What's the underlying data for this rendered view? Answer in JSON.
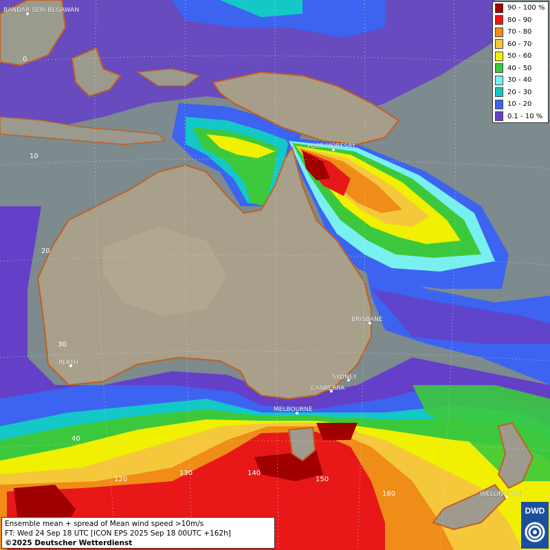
{
  "map": {
    "cities": [
      {
        "id": "bandar",
        "label": "BANDAR SERI BEGAWAN"
      },
      {
        "id": "port-moresby",
        "label": "PORT MORESBY"
      },
      {
        "id": "brisbane",
        "label": "BRISBANE"
      },
      {
        "id": "perth",
        "label": "PERTH"
      },
      {
        "id": "sydney",
        "label": "SYDNEY"
      },
      {
        "id": "canberra",
        "label": "CANBERRA"
      },
      {
        "id": "melbourne",
        "label": "MELBOURNE"
      },
      {
        "id": "wellington",
        "label": "WELLINGTON"
      }
    ],
    "latitude_labels": [
      "0",
      "10",
      "20",
      "30",
      "40"
    ],
    "longitude_labels": [
      "120",
      "130",
      "140",
      "150",
      "160"
    ]
  },
  "legend": {
    "items": [
      {
        "label": "90 - 100 %",
        "color": "#a00000"
      },
      {
        "label": "80 - 90",
        "color": "#e81818"
      },
      {
        "label": "70 - 80",
        "color": "#f08c18"
      },
      {
        "label": "60 - 70",
        "color": "#f5c83c"
      },
      {
        "label": "50 - 60",
        "color": "#f0f000"
      },
      {
        "label": "40 - 50",
        "color": "#3cc83c"
      },
      {
        "label": "30 - 40",
        "color": "#78f0f0"
      },
      {
        "label": "20 - 30",
        "color": "#14c8c8"
      },
      {
        "label": "10 - 20",
        "color": "#3c64f0"
      },
      {
        "label": "0.1 - 10 %",
        "color": "#6440c8"
      }
    ]
  },
  "info": {
    "line1": "Ensemble mean + spread of Mean wind speed >10m/s",
    "line2": "FT: Wed 24 Sep 18 UTC [ICON EPS 2025 Sep 18 00UTC +162h]",
    "line3": "©2025 Deutscher Wetterdienst"
  },
  "logo": {
    "text": "DWD"
  }
}
